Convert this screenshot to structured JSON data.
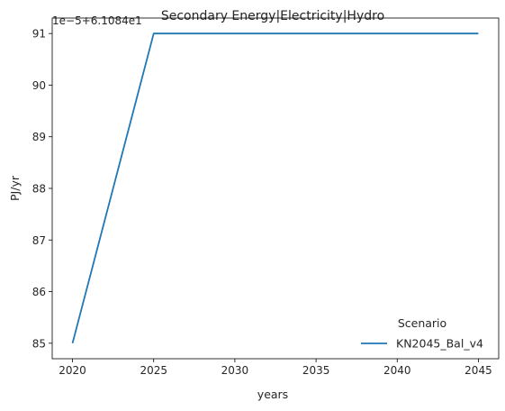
{
  "chart_data": {
    "type": "line",
    "title": "Secondary Energy|Electricity|Hydro",
    "xlabel": "years",
    "ylabel": "PJ/yr",
    "offset_text": "1e−5+6.1084e1",
    "x": [
      2020,
      2025,
      2030,
      2035,
      2040,
      2045
    ],
    "xlim": [
      2018.75,
      2046.25
    ],
    "xticks": [
      2020,
      2025,
      2030,
      2035,
      2040,
      2045
    ],
    "ylim": [
      84.7,
      91.3
    ],
    "yticks": [
      85,
      86,
      87,
      88,
      89,
      90,
      91
    ],
    "grid": false,
    "legend": {
      "title": "Scenario",
      "placement": "lower-right"
    },
    "series": [
      {
        "name": "KN2045_Bal_v4",
        "color": "#1f77b4",
        "values": [
          85,
          91,
          91,
          91,
          91,
          91
        ]
      }
    ]
  }
}
